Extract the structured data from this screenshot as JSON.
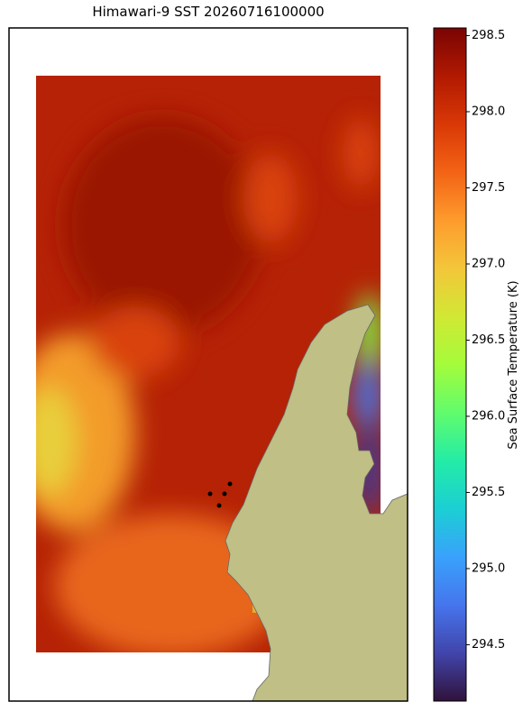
{
  "title": "Himawari-9 SST 20260716100000",
  "colorbar": {
    "label": "Sea Surface Temperature (K)",
    "limits": [
      294.13,
      298.55
    ],
    "ticks": [
      294.5,
      {
        "value": 295,
        "label": "295.0"
      },
      295.5,
      {
        "value": 296,
        "label": "296.0"
      },
      296.5,
      {
        "value": 297,
        "label": "297.0"
      },
      297.5,
      {
        "value": 298,
        "label": "298.0"
      },
      298.5
    ],
    "colormap": [
      "#30123b",
      "#4145ab",
      "#4675ed",
      "#39a2fc",
      "#1bcfd4",
      "#24eca6",
      "#61fc6c",
      "#a4fc3b",
      "#d1e834",
      "#f3c63a",
      "#fe9b2d",
      "#f36315",
      "#d93806",
      "#b11901",
      "#7a0403"
    ]
  }
}
